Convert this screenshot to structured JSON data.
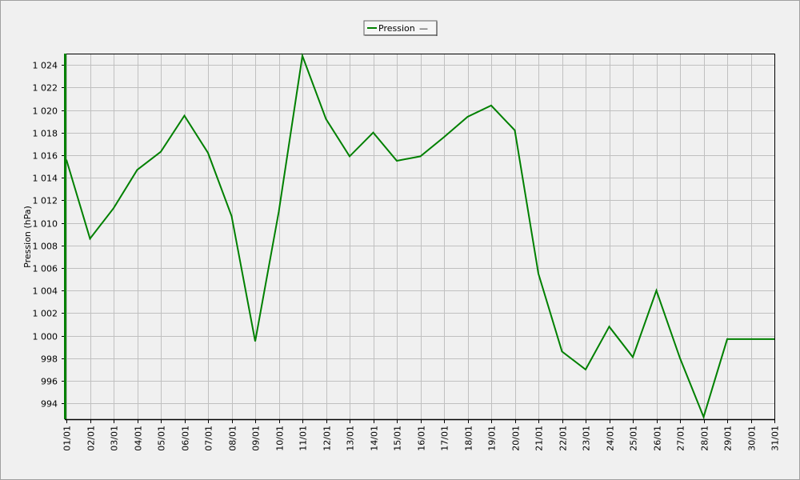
{
  "colors": {
    "background": "#f0f0f0",
    "plot_background": "#f0f0f0",
    "grid": "#c0c0c0",
    "series": "#008000",
    "axis": "#000000"
  },
  "chart_data": {
    "type": "line",
    "title": "",
    "xlabel": "",
    "ylabel": "Pression (hPa)",
    "categories": [
      "01/01",
      "02/01",
      "03/01",
      "04/01",
      "05/01",
      "06/01",
      "07/01",
      "08/01",
      "09/01",
      "10/01",
      "11/01",
      "12/01",
      "13/01",
      "14/01",
      "15/01",
      "16/01",
      "17/01",
      "18/01",
      "19/01",
      "20/01",
      "21/01",
      "22/01",
      "23/01",
      "24/01",
      "25/01",
      "26/01",
      "27/01",
      "28/01",
      "29/01",
      "30/01",
      "31/01"
    ],
    "ylim": [
      992.6,
      1025.0
    ],
    "yticks": [
      994,
      996,
      998,
      1000,
      1002,
      1004,
      1006,
      1008,
      1010,
      1012,
      1014,
      1016,
      1018,
      1020,
      1022,
      1024
    ],
    "ytick_labels": [
      "994",
      "996",
      "998",
      "1 000",
      "1 002",
      "1 004",
      "1 006",
      "1 008",
      "1 010",
      "1 012",
      "1 014",
      "1 016",
      "1 018",
      "1 020",
      "1 022",
      "1 024"
    ],
    "grid": true,
    "legend_position": "top-center",
    "series": [
      {
        "name": "Pression",
        "color": "#008000",
        "values": [
          1015.6,
          1008.6,
          1011.3,
          1014.7,
          1016.3,
          1019.5,
          1016.2,
          1010.6,
          999.5,
          1011.0,
          1024.8,
          1019.2,
          1015.9,
          1018.0,
          1015.5,
          1015.9,
          1017.6,
          1019.4,
          1020.4,
          1018.2,
          1005.5,
          998.6,
          997.0,
          1000.8,
          998.1,
          1004.0,
          998.0,
          992.8,
          999.7,
          999.7,
          999.7
        ]
      }
    ]
  },
  "legend": {
    "label": "Pression",
    "suffix": "—"
  }
}
